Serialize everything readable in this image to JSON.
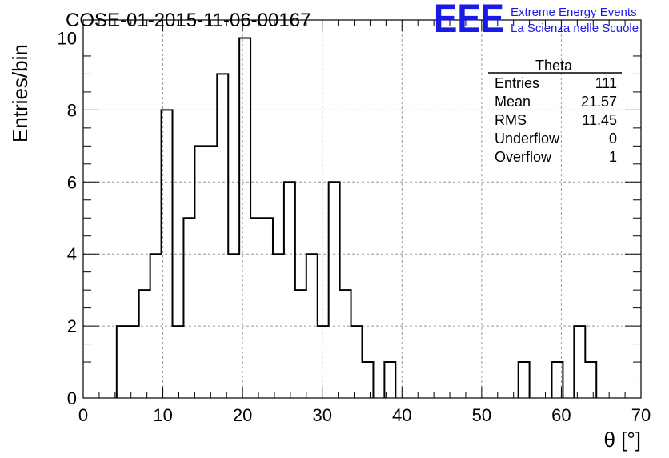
{
  "chart_data": {
    "type": "bar",
    "title": "COSE-01-2015-11-06-00167",
    "xlabel": "θ [°]",
    "ylabel": "Entries/bin",
    "xlim": [
      0,
      70
    ],
    "ylim": [
      0,
      10.5
    ],
    "x_ticks": [
      0,
      10,
      20,
      30,
      40,
      50,
      60,
      70
    ],
    "y_ticks": [
      0,
      2,
      4,
      6,
      8,
      10
    ],
    "x_tick_labels": [
      "0",
      "10",
      "20",
      "30",
      "40",
      "50",
      "60",
      "70"
    ],
    "y_tick_labels": [
      "0",
      "2",
      "4",
      "6",
      "8",
      "10"
    ],
    "grid": true,
    "bin_width": 1.4,
    "bin_edges_start": 0,
    "series": [
      {
        "values": [
          0,
          0,
          0,
          2,
          2,
          3,
          4,
          8,
          2,
          5,
          7,
          7,
          9,
          4,
          10,
          5,
          5,
          4,
          6,
          3,
          4,
          2,
          6,
          3,
          2,
          1,
          0,
          1,
          0,
          0,
          0,
          0,
          0,
          0,
          0,
          0,
          0,
          0,
          0,
          1,
          0,
          0,
          1,
          0,
          2,
          1,
          0,
          0,
          0,
          0
        ]
      }
    ]
  },
  "stats_box": {
    "title": "Theta",
    "rows": [
      {
        "label": "Entries",
        "value": "111"
      },
      {
        "label": "Mean",
        "value": "21.57"
      },
      {
        "label": "RMS",
        "value": "11.45"
      },
      {
        "label": "Underflow",
        "value": "0"
      },
      {
        "label": "Overflow",
        "value": "1"
      }
    ]
  },
  "logo": {
    "text": "EEE",
    "line1": "Extreme Energy Events",
    "line2": "La Scienza nelle Scuole",
    "color": "#1a1ae6"
  }
}
